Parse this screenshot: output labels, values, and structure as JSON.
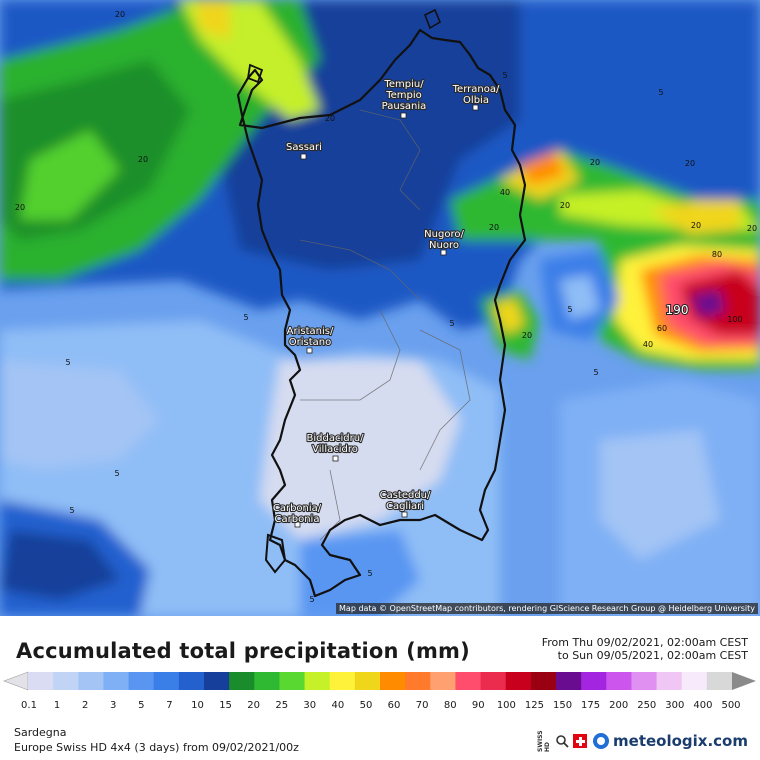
{
  "map": {
    "attribution": "Map data © OpenStreetMap contributors, rendering GIScience Research Group @ Heidelberg University",
    "cities": [
      {
        "name": "Tempiu/",
        "name2": "Tempio",
        "name3": "Pausania"
      },
      {
        "name": "Terranoa/",
        "name2": "Olbia",
        "name3": ""
      },
      {
        "name": "Sassari",
        "name2": "",
        "name3": ""
      },
      {
        "name": "Nugoro/",
        "name2": "Nuoro",
        "name3": ""
      },
      {
        "name": "Aristanis/",
        "name2": "Oristano",
        "name3": ""
      },
      {
        "name": "Biddacidru/",
        "name2": "Villacidro",
        "name3": ""
      },
      {
        "name": "Carbonia/",
        "name2": "Carbonia",
        "name3": ""
      },
      {
        "name": "Casteddu/",
        "name2": "Cagliari",
        "name3": ""
      }
    ],
    "iso_labels": [
      "20",
      "20",
      "20",
      "20",
      "5",
      "5",
      "20",
      "40",
      "20",
      "20",
      "20",
      "20",
      "20",
      "80",
      "60",
      "40",
      "100",
      "20",
      "5",
      "5",
      "5",
      "5",
      "5",
      "5",
      "5",
      "5",
      "5"
    ],
    "max_label": "190"
  },
  "title": "Accumulated total precipitation (mm)",
  "period": {
    "from": "From Thu 09/02/2021, 02:00am CEST",
    "to": "to Sun 09/05/2021, 02:00am CEST"
  },
  "legend": {
    "labels": [
      "0.1",
      "1",
      "2",
      "3",
      "5",
      "7",
      "10",
      "15",
      "20",
      "25",
      "30",
      "40",
      "50",
      "60",
      "70",
      "80",
      "90",
      "100",
      "125",
      "150",
      "175",
      "200",
      "250",
      "300",
      "400",
      "500"
    ],
    "colors": [
      "#d9dcf2",
      "#c2d4f5",
      "#a3c4f5",
      "#7fb0f5",
      "#5896f2",
      "#3a7ee8",
      "#2461cf",
      "#153f9a",
      "#1a8c2c",
      "#2fb832",
      "#58d830",
      "#c6f028",
      "#fff23a",
      "#f0d61a",
      "#ff8c00",
      "#ff7a2a",
      "#ffa070",
      "#ff4d6d",
      "#ec2c4e",
      "#c8001e",
      "#990011",
      "#6a0c90",
      "#a325e0",
      "#cc55ee",
      "#e090f0",
      "#f0c6f5",
      "#f7eafa",
      "#d8d8d8"
    ],
    "start_arrow_color": "#e2e2e8",
    "end_arrow_color": "#8a8a8a"
  },
  "footer": {
    "region": "Sardegna",
    "model": "Europe Swiss HD 4x4  (3 days)  from  09/02/2021/00z",
    "swiss_tag": "SWISS HD",
    "brand": "meteologix.com"
  }
}
